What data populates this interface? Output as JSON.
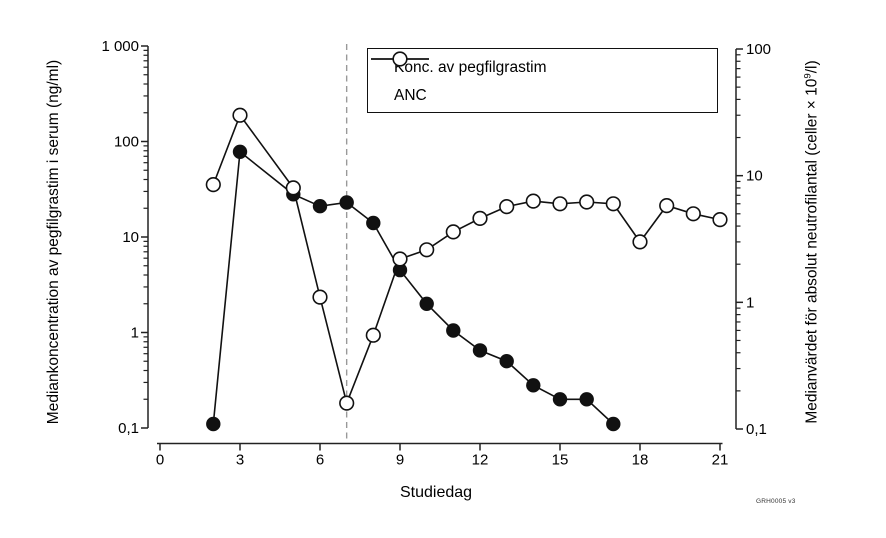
{
  "figure": {
    "plate_code": "GRH0005 v3"
  },
  "chart_data": {
    "type": "line",
    "title": "",
    "xlabel": "Studiedag",
    "xlim": [
      0,
      21
    ],
    "x_ticks": [
      0,
      3,
      6,
      9,
      12,
      15,
      18,
      21
    ],
    "grid": false,
    "legend_position": "top-center",
    "y_left": {
      "label": "Mediankoncentration av pegfilgrastim i serum (ng/ml)",
      "scale": "log",
      "lim": [
        0.1,
        1000
      ],
      "tick_values": [
        1000,
        100,
        10,
        1,
        0.1
      ],
      "tick_labels": [
        "1 000",
        "100",
        "10",
        "1",
        "0,1"
      ]
    },
    "y_right": {
      "label_pre": "Medianvärdet för absolut neutrofilantal (celler × 10",
      "label_sup": "9",
      "label_post": "/l)",
      "scale": "log",
      "lim": [
        0.1,
        100
      ],
      "tick_values": [
        100,
        10,
        1,
        0.1
      ],
      "tick_labels": [
        "100",
        "10",
        "1",
        "0,1"
      ]
    },
    "series": [
      {
        "name": "Konc. av pegfilgrastim",
        "axis": "left",
        "marker": "filled-circle",
        "x": [
          2,
          3,
          5,
          6,
          7,
          8,
          9,
          10,
          11,
          12,
          13,
          14,
          15,
          16,
          17
        ],
        "values": [
          0.11,
          78,
          28,
          21,
          23,
          14,
          4.5,
          2.0,
          1.05,
          0.65,
          0.5,
          0.28,
          0.2,
          0.2,
          0.11
        ]
      },
      {
        "name": "ANC",
        "axis": "right",
        "marker": "open-circle",
        "x": [
          2,
          3,
          5,
          6,
          7,
          8,
          9,
          10,
          11,
          12,
          13,
          14,
          15,
          16,
          17,
          18,
          19,
          20,
          21
        ],
        "values": [
          8.5,
          30,
          8,
          1.1,
          0.16,
          0.55,
          2.2,
          2.6,
          3.6,
          4.6,
          5.7,
          6.3,
          6.0,
          6.2,
          6.0,
          3.0,
          5.8,
          5.0,
          4.5
        ]
      }
    ],
    "annotations": [
      {
        "type": "vline",
        "x": 7,
        "style": "dashed"
      }
    ],
    "colors": {
      "series": "#111111",
      "axis": "#222222",
      "dashed_line": "#999999",
      "marker_fill_open": "#ffffff"
    }
  }
}
